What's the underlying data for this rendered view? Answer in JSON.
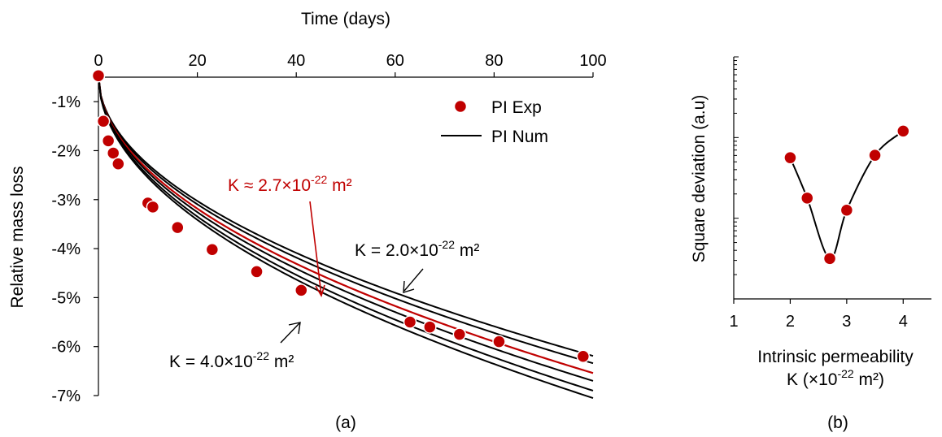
{
  "colors": {
    "experiment": "#c00000",
    "fit": "#c00000",
    "numeric": "#000000",
    "marker_edge": "#ffffff"
  },
  "chart_data": [
    {
      "type": "line",
      "caption": "(a)",
      "xlabel": "Time (days)",
      "ylabel": "Relative mass loss",
      "x_axis_position": "top",
      "xlim": [
        0,
        100
      ],
      "ylim": [
        -7,
        -0.5
      ],
      "xticks": [
        0,
        20,
        40,
        60,
        80,
        100
      ],
      "yticks": [
        -1,
        -2,
        -3,
        -4,
        -5,
        -6,
        -7
      ],
      "ytick_labels": [
        "-1%",
        "-2%",
        "-3%",
        "-4%",
        "-5%",
        "-6%",
        "-7%"
      ],
      "grid": false,
      "legend": {
        "placement": "top-right",
        "entries": [
          "PI Exp",
          "PI Num"
        ]
      },
      "series": [
        {
          "name": "PI Exp",
          "kind": "scatter",
          "x": [
            0,
            1,
            2,
            3,
            4,
            10,
            11,
            16,
            23,
            32,
            41,
            63,
            67,
            73,
            81,
            98
          ],
          "y": [
            -0.47,
            -1.4,
            -1.8,
            -2.05,
            -2.27,
            -3.07,
            -3.15,
            -3.57,
            -4.02,
            -4.47,
            -4.85,
            -5.5,
            -5.6,
            -5.75,
            -5.9,
            -6.2
          ]
        },
        {
          "name": "PI Num",
          "kind": "curve",
          "curves": [
            {
              "K": 2.0,
              "A": 0.572,
              "highlight": false
            },
            {
              "K": 2.3,
              "A": 0.587,
              "highlight": false
            },
            {
              "K": 2.7,
              "A": 0.607,
              "highlight": true
            },
            {
              "K": 3.0,
              "A": 0.623,
              "highlight": false
            },
            {
              "K": 3.5,
              "A": 0.643,
              "highlight": false
            },
            {
              "K": 4.0,
              "A": 0.658,
              "highlight": false
            }
          ]
        }
      ],
      "annotations": [
        {
          "prefix": "K ≈ 2.7×10",
          "exp": "-22",
          "suffix": " m²",
          "color": "#c00000"
        },
        {
          "prefix": "K = 2.0×10",
          "exp": "-22",
          "suffix": " m²",
          "color": "#000000"
        },
        {
          "prefix": "K = 4.0×10",
          "exp": "-22",
          "suffix": " m²",
          "color": "#000000"
        }
      ]
    },
    {
      "type": "line",
      "caption": "(b)",
      "xlabel_line1": "Intrinsic permeability",
      "xlabel_line2": {
        "prefix": "K (×10",
        "exp": "-22",
        "suffix": " m²)"
      },
      "ylabel": "Square deviation (a.u)",
      "y_scale": "log",
      "xlim": [
        1,
        4.5
      ],
      "ylim_log_decades": [
        0,
        3
      ],
      "xticks": [
        1,
        2,
        3,
        4
      ],
      "series": [
        {
          "name": "",
          "x": [
            2.0,
            2.3,
            2.7,
            3.0,
            3.5,
            4.0
          ],
          "y_log": [
            1.75,
            1.25,
            0.5,
            1.1,
            1.78,
            2.08
          ]
        }
      ]
    }
  ]
}
